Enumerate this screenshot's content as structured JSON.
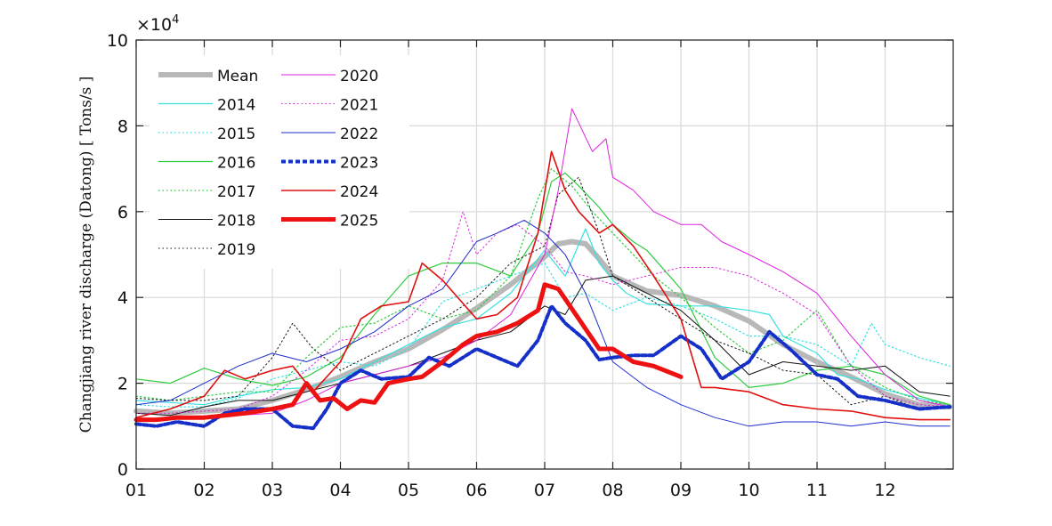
{
  "chart_data": {
    "type": "line",
    "ylabel": "Changjiang  river  discharge  (Datong)  [  Tons/s  ]",
    "y_exponent_label": "×10",
    "y_exponent_power": "4",
    "ylim": [
      0,
      100000
    ],
    "yticks": [
      0,
      20000,
      40000,
      60000,
      80000,
      100000
    ],
    "ytick_labels": [
      "0",
      "2",
      "4",
      "6",
      "8",
      "10"
    ],
    "xlim": [
      1,
      13
    ],
    "xticks": [
      1,
      2,
      3,
      4,
      5,
      6,
      7,
      8,
      9,
      10,
      11,
      12
    ],
    "xtick_labels": [
      "01",
      "02",
      "03",
      "04",
      "05",
      "06",
      "07",
      "08",
      "09",
      "10",
      "11",
      "12"
    ],
    "grid": true,
    "legend_position": "top-left, two columns",
    "series": [
      {
        "name": "Mean",
        "color": "#b8b8b8",
        "style": "solid",
        "width": 6,
        "x": [
          1.0,
          1.5,
          2.0,
          2.5,
          3.0,
          3.5,
          4.0,
          4.5,
          5.0,
          5.5,
          6.0,
          6.5,
          7.0,
          7.2,
          7.4,
          7.6,
          7.8,
          8.0,
          8.5,
          9.0,
          9.5,
          10.0,
          10.5,
          11.0,
          11.5,
          12.0,
          12.5,
          12.95
        ],
        "y": [
          13500,
          13000,
          13500,
          14000,
          16000,
          18500,
          21500,
          25000,
          28000,
          32500,
          37500,
          43000,
          49500,
          52500,
          53000,
          52500,
          49000,
          45000,
          41500,
          40500,
          38000,
          34500,
          29000,
          25000,
          21500,
          17500,
          15000,
          14500
        ]
      },
      {
        "name": "2014",
        "color": "#38e0e0",
        "style": "solid",
        "width": 1.2,
        "x": [
          1.0,
          1.5,
          2.0,
          2.5,
          3.0,
          3.5,
          4.0,
          4.5,
          5.0,
          5.5,
          6.0,
          6.5,
          7.0,
          7.3,
          7.6,
          7.8,
          8.0,
          8.2,
          8.5,
          9.0,
          9.5,
          10.0,
          10.3,
          10.5,
          11.0,
          11.3,
          11.6,
          12.0,
          12.5,
          12.95
        ],
        "y": [
          16000,
          15500,
          15000,
          17000,
          18500,
          19000,
          21000,
          25000,
          29000,
          33000,
          35000,
          41000,
          51000,
          45000,
          56000,
          48000,
          44000,
          41000,
          38500,
          38000,
          38000,
          37000,
          36000,
          31000,
          27000,
          22000,
          21000,
          18500,
          16500,
          15000
        ]
      },
      {
        "name": "2015",
        "color": "#38e0e0",
        "style": "dotted",
        "width": 1.2,
        "x": [
          1.0,
          1.5,
          2.0,
          2.5,
          3.0,
          3.5,
          4.0,
          4.5,
          5.0,
          5.5,
          6.0,
          6.5,
          7.0,
          7.3,
          7.6,
          8.0,
          8.5,
          9.0,
          9.5,
          10.0,
          10.5,
          11.0,
          11.5,
          11.8,
          12.0,
          12.5,
          12.95
        ],
        "y": [
          15000,
          14500,
          14500,
          16500,
          21000,
          23000,
          25000,
          24000,
          28000,
          39000,
          42000,
          45000,
          48000,
          40000,
          41000,
          37000,
          40000,
          38000,
          35000,
          31000,
          31000,
          29000,
          24000,
          34000,
          29000,
          26000,
          24000
        ]
      },
      {
        "name": "2016",
        "color": "#2ecc40",
        "style": "solid",
        "width": 1.2,
        "x": [
          1.0,
          1.5,
          2.0,
          2.5,
          3.0,
          3.5,
          4.0,
          4.5,
          5.0,
          5.5,
          6.0,
          6.5,
          6.9,
          7.1,
          7.3,
          7.5,
          7.8,
          8.0,
          8.3,
          8.5,
          9.0,
          9.5,
          10.0,
          10.5,
          11.0,
          11.5,
          12.0,
          12.5,
          12.95
        ],
        "y": [
          21000,
          20000,
          23500,
          21000,
          19500,
          21500,
          26000,
          36000,
          45000,
          48000,
          48000,
          45000,
          55000,
          67000,
          69000,
          66000,
          61000,
          57000,
          53000,
          51000,
          42000,
          26000,
          19000,
          20000,
          23000,
          24000,
          22000,
          17000,
          15000
        ]
      },
      {
        "name": "2017",
        "color": "#2ecc40",
        "style": "dotted",
        "width": 1.2,
        "x": [
          1.0,
          1.5,
          2.0,
          2.5,
          3.0,
          3.5,
          4.0,
          4.5,
          5.0,
          5.5,
          6.0,
          6.5,
          6.9,
          7.1,
          7.4,
          7.7,
          8.0,
          8.3,
          8.6,
          9.0,
          9.5,
          10.0,
          10.5,
          11.0,
          11.5,
          12.0,
          12.5,
          12.95
        ],
        "y": [
          17000,
          16000,
          17000,
          18000,
          18000,
          26000,
          33000,
          34000,
          38000,
          35000,
          37000,
          45000,
          63000,
          70000,
          66000,
          60000,
          55000,
          50000,
          45000,
          40000,
          33000,
          27000,
          30000,
          37000,
          24000,
          19000,
          16000,
          15000
        ]
      },
      {
        "name": "2018",
        "color": "#111111",
        "style": "solid",
        "width": 1.0,
        "x": [
          1.0,
          1.5,
          2.0,
          2.5,
          3.0,
          3.5,
          4.0,
          4.5,
          5.0,
          5.5,
          6.0,
          6.5,
          7.0,
          7.3,
          7.6,
          8.0,
          8.5,
          9.0,
          9.5,
          10.0,
          10.5,
          11.0,
          11.5,
          12.0,
          12.5,
          12.95
        ],
        "y": [
          13000,
          12500,
          14500,
          16000,
          16000,
          18000,
          20000,
          22000,
          24000,
          27000,
          30000,
          32000,
          38000,
          36000,
          44000,
          45000,
          41000,
          37000,
          30000,
          22000,
          25000,
          24000,
          23000,
          24000,
          18000,
          17000
        ]
      },
      {
        "name": "2019",
        "color": "#111111",
        "style": "dotted",
        "width": 1.0,
        "x": [
          1.0,
          1.5,
          2.0,
          2.5,
          3.0,
          3.3,
          3.6,
          4.0,
          4.5,
          5.0,
          5.5,
          6.0,
          6.5,
          7.0,
          7.2,
          7.5,
          7.8,
          8.0,
          8.5,
          9.0,
          9.5,
          10.0,
          10.5,
          11.0,
          11.5,
          12.0,
          12.5,
          12.95
        ],
        "y": [
          16500,
          16000,
          16000,
          17000,
          26000,
          34000,
          28000,
          23000,
          27000,
          31000,
          35000,
          40000,
          48000,
          52000,
          64000,
          68000,
          55000,
          45000,
          40000,
          35000,
          30000,
          27000,
          23000,
          22000,
          15000,
          17000,
          14000,
          14500
        ]
      },
      {
        "name": "2020",
        "color": "#dd22dd",
        "style": "solid",
        "width": 1.0,
        "x": [
          1.0,
          1.5,
          2.0,
          2.5,
          3.0,
          3.5,
          4.0,
          4.5,
          5.0,
          5.5,
          6.0,
          6.5,
          7.0,
          7.2,
          7.4,
          7.7,
          7.9,
          8.0,
          8.3,
          8.6,
          9.0,
          9.3,
          9.6,
          10.0,
          10.5,
          11.0,
          11.5,
          12.0,
          12.5,
          12.95
        ],
        "y": [
          11500,
          12000,
          12000,
          12500,
          13000,
          16000,
          20000,
          22000,
          24000,
          26000,
          30000,
          36000,
          50000,
          65000,
          84000,
          74000,
          77000,
          68000,
          65000,
          60000,
          57000,
          57000,
          53000,
          50000,
          46000,
          41000,
          31000,
          22000,
          16000,
          14500
        ]
      },
      {
        "name": "2021",
        "color": "#dd22dd",
        "style": "dotted",
        "width": 1.0,
        "x": [
          1.0,
          1.5,
          2.0,
          2.5,
          3.0,
          3.5,
          4.0,
          4.5,
          5.0,
          5.5,
          5.8,
          6.0,
          6.3,
          6.6,
          7.0,
          7.3,
          7.6,
          8.0,
          8.5,
          9.0,
          9.5,
          10.0,
          10.5,
          11.0,
          11.5,
          12.0,
          12.5,
          12.95
        ],
        "y": [
          13000,
          13000,
          13500,
          14000,
          17000,
          23000,
          30000,
          31000,
          35000,
          44000,
          60000,
          50000,
          55000,
          57000,
          52000,
          46000,
          45000,
          43000,
          45000,
          47000,
          47000,
          45000,
          41000,
          36000,
          24000,
          17000,
          15000,
          14500
        ]
      },
      {
        "name": "2022",
        "color": "#1f2ecc",
        "style": "solid",
        "width": 1.0,
        "x": [
          1.0,
          1.5,
          2.0,
          2.5,
          3.0,
          3.5,
          4.0,
          4.5,
          5.0,
          5.5,
          6.0,
          6.3,
          6.7,
          7.0,
          7.3,
          7.6,
          8.0,
          8.5,
          9.0,
          9.5,
          10.0,
          10.5,
          11.0,
          11.5,
          12.0,
          12.5,
          12.95
        ],
        "y": [
          15000,
          16000,
          20000,
          24000,
          27000,
          25000,
          28000,
          32000,
          38000,
          42000,
          53000,
          55000,
          58000,
          55000,
          50000,
          41000,
          25000,
          19000,
          15000,
          12000,
          10000,
          11000,
          11000,
          10000,
          11000,
          10000,
          10000
        ]
      },
      {
        "name": "2023",
        "color": "#1530c8",
        "style": "dashed",
        "width": 4,
        "x": [
          1.0,
          1.3,
          1.6,
          2.0,
          2.3,
          2.6,
          3.0,
          3.3,
          3.6,
          3.8,
          4.0,
          4.3,
          4.6,
          5.0,
          5.3,
          5.6,
          6.0,
          6.3,
          6.6,
          6.9,
          7.1,
          7.3,
          7.6,
          7.8,
          8.0,
          8.3,
          8.6,
          9.0,
          9.3,
          9.6,
          10.0,
          10.3,
          10.6,
          11.0,
          11.3,
          11.6,
          12.0,
          12.5,
          12.95
        ],
        "y": [
          10500,
          10000,
          11000,
          10000,
          13000,
          14000,
          14000,
          10000,
          9500,
          14000,
          20000,
          23000,
          21000,
          21500,
          26000,
          24000,
          28000,
          26000,
          24000,
          30000,
          38000,
          34000,
          30000,
          25500,
          26000,
          26500,
          26500,
          31000,
          28000,
          21000,
          25000,
          32000,
          28000,
          22000,
          21000,
          17000,
          16000,
          14000,
          14500
        ]
      },
      {
        "name": "2024",
        "color": "#e01010",
        "style": "solid",
        "width": 1.6,
        "x": [
          1.0,
          1.5,
          2.0,
          2.3,
          2.6,
          3.0,
          3.3,
          3.6,
          4.0,
          4.3,
          4.6,
          5.0,
          5.2,
          5.5,
          6.0,
          6.3,
          6.6,
          6.9,
          7.1,
          7.3,
          7.5,
          7.8,
          8.0,
          8.3,
          8.6,
          9.0,
          9.3,
          9.5,
          10.0,
          10.5,
          11.0,
          11.5,
          12.0,
          12.5,
          12.95
        ],
        "y": [
          12000,
          14000,
          17000,
          23000,
          21000,
          23000,
          24000,
          18000,
          25000,
          35000,
          38000,
          39000,
          48000,
          44000,
          35000,
          36000,
          40000,
          55000,
          74000,
          65000,
          60000,
          55000,
          57000,
          52000,
          45000,
          35000,
          19000,
          19000,
          18000,
          15000,
          14000,
          13500,
          12000,
          11500,
          11500
        ]
      },
      {
        "name": "2025",
        "color": "#ee1111",
        "style": "solid",
        "width": 5,
        "x": [
          1.0,
          1.3,
          1.6,
          2.0,
          2.3,
          2.6,
          3.0,
          3.3,
          3.5,
          3.7,
          3.9,
          4.1,
          4.3,
          4.5,
          4.7,
          5.0,
          5.2,
          5.5,
          5.8,
          6.0,
          6.3,
          6.6,
          6.9,
          7.0,
          7.2,
          7.5,
          7.8,
          8.0,
          8.3,
          8.6,
          9.0
        ],
        "y": [
          11500,
          11500,
          12000,
          12000,
          12500,
          13000,
          14000,
          15000,
          20000,
          16000,
          16500,
          14000,
          16000,
          15500,
          20000,
          21000,
          21500,
          25000,
          29000,
          31000,
          32000,
          34000,
          37000,
          43000,
          42000,
          35000,
          28000,
          28000,
          25000,
          24000,
          21500
        ]
      }
    ]
  }
}
